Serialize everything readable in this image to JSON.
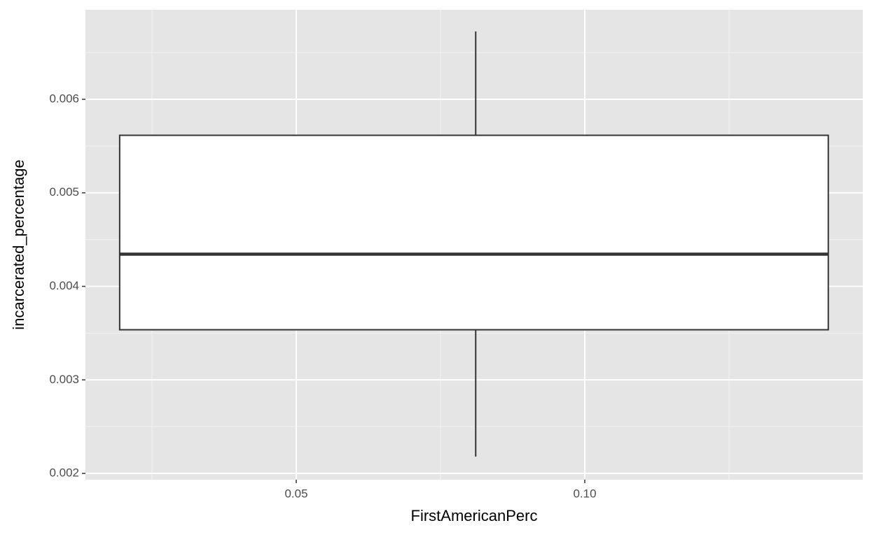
{
  "chart_data": {
    "type": "box",
    "x_label": "FirstAmericanPerc",
    "y_label": "incarcerated_percentage",
    "xlim": [
      0.01347,
      0.14818
    ],
    "ylim": [
      0.001933,
      0.006957
    ],
    "xticks": [
      {
        "value": 0.05,
        "label": "0.05"
      },
      {
        "value": 0.1,
        "label": "0.10"
      }
    ],
    "yticks": [
      0.002,
      0.003,
      0.004,
      0.005,
      0.006
    ],
    "minor_xticks": [
      0.025,
      0.075,
      0.125
    ],
    "minor_yticks": [
      0.0025,
      0.0035,
      0.0045,
      0.0055,
      0.0065
    ],
    "grid": true,
    "boxes": [
      {
        "x": 0.0811,
        "xmin": 0.0194,
        "xmax": 0.1422,
        "lower_whisker": 0.00218,
        "q1": 0.003536,
        "median": 0.004344,
        "q3": 0.005615,
        "upper_whisker": 0.006725
      }
    ]
  }
}
